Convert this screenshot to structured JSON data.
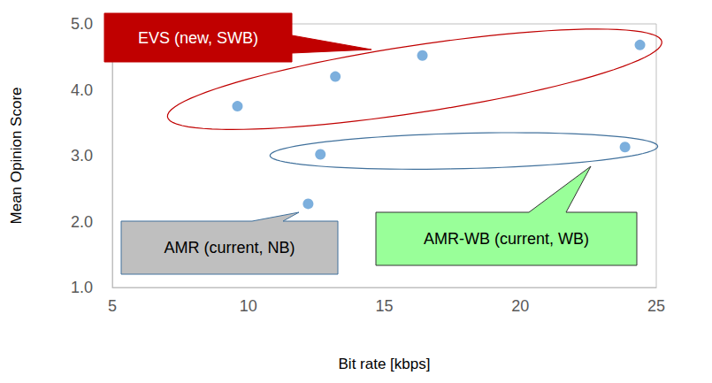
{
  "chart_data": {
    "type": "scatter",
    "xlabel": "Bit rate [kbps]",
    "ylabel": "Mean Opinion Score",
    "xlim": [
      5,
      25
    ],
    "xticks": [
      5,
      10,
      15,
      20,
      25
    ],
    "ylim": [
      1,
      5
    ],
    "yticks": [
      {
        "value": 1,
        "label": "1.0"
      },
      {
        "value": 2,
        "label": "2.0"
      },
      {
        "value": 3,
        "label": "3.0"
      },
      {
        "value": 4,
        "label": "4.0"
      },
      {
        "value": 5,
        "label": "5.0"
      }
    ],
    "grid": false,
    "series": [
      {
        "name": "EVS (new, SWB)",
        "color": "#5b9bd5",
        "x": [
          9.6,
          13.2,
          16.4,
          24.4
        ],
        "values": [
          3.75,
          4.2,
          4.52,
          4.68
        ]
      },
      {
        "name": "AMR-WB (current, WB)",
        "color": "#5b9bd5",
        "x": [
          12.65,
          23.85
        ],
        "values": [
          3.02,
          3.13
        ]
      },
      {
        "name": "AMR (current, NB)",
        "color": "#5b9bd5",
        "x": [
          12.2
        ],
        "values": [
          2.27
        ]
      }
    ]
  }
}
